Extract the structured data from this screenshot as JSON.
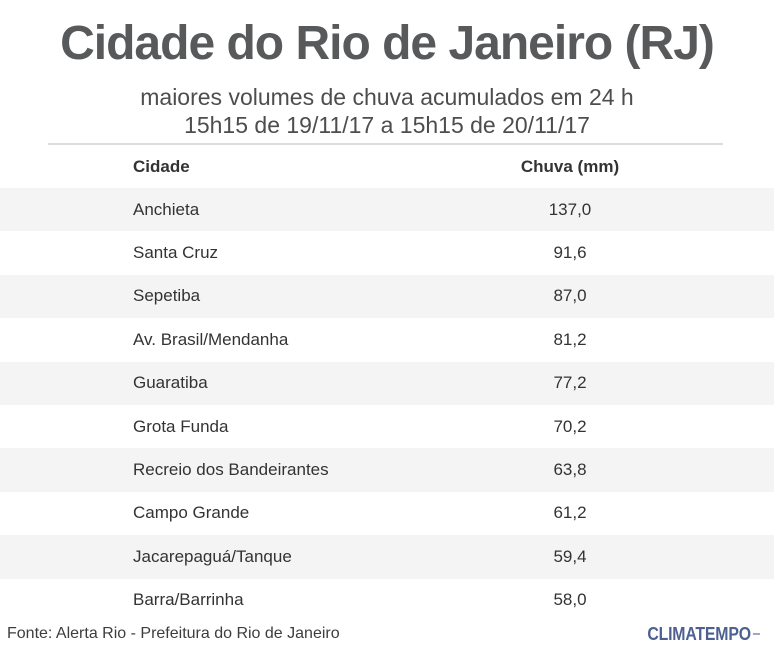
{
  "header": {
    "title": "Cidade do Rio de Janeiro (RJ)",
    "subtitle_line1": "maiores volumes de chuva acumulados em 24 h",
    "subtitle_line2": "15h15 de 19/11/17 a 15h15 de 20/11/17"
  },
  "table": {
    "columns": [
      "Cidade",
      "Chuva (mm)"
    ],
    "rows": [
      {
        "cidade": "Anchieta",
        "chuva": "137,0"
      },
      {
        "cidade": "Santa Cruz",
        "chuva": "91,6"
      },
      {
        "cidade": "Sepetiba",
        "chuva": "87,0"
      },
      {
        "cidade": "Av. Brasil/Mendanha",
        "chuva": "81,2"
      },
      {
        "cidade": "Guaratiba",
        "chuva": "77,2"
      },
      {
        "cidade": "Grota Funda",
        "chuva": "70,2"
      },
      {
        "cidade": "Recreio dos Bandeirantes",
        "chuva": "63,8"
      },
      {
        "cidade": "Campo Grande",
        "chuva": "61,2"
      },
      {
        "cidade": "Jacarepaguá/Tanque",
        "chuva": "59,4"
      },
      {
        "cidade": "Barra/Barrinha",
        "chuva": "58,0"
      }
    ]
  },
  "footer": {
    "source": "Fonte: Alerta Rio - Prefeitura do Rio de Janeiro",
    "brand": "CLIMATEMPO"
  },
  "colors": {
    "title_color": "#58595b",
    "subtitle_color": "#4d4d4f",
    "divider_color": "#dcdcdc",
    "row_alt_color": "#f4f4f4",
    "cell_text_color": "#333333",
    "brand_color": "#4e6090"
  },
  "chart_data": {
    "type": "table",
    "title": "Cidade do Rio de Janeiro (RJ)",
    "subtitle": "maiores volumes de chuva acumulados em 24 h — 15h15 de 19/11/17 a 15h15 de 20/11/17",
    "columns": [
      "Cidade",
      "Chuva (mm)"
    ],
    "categories": [
      "Anchieta",
      "Santa Cruz",
      "Sepetiba",
      "Av. Brasil/Mendanha",
      "Guaratiba",
      "Grota Funda",
      "Recreio dos Bandeirantes",
      "Campo Grande",
      "Jacarepaguá/Tanque",
      "Barra/Barrinha"
    ],
    "values": [
      137.0,
      91.6,
      87.0,
      81.2,
      77.2,
      70.2,
      63.8,
      61.2,
      59.4,
      58.0
    ],
    "unit": "mm",
    "source": "Fonte: Alerta Rio - Prefeitura do Rio de Janeiro",
    "brand": "CLIMATEMPO"
  }
}
